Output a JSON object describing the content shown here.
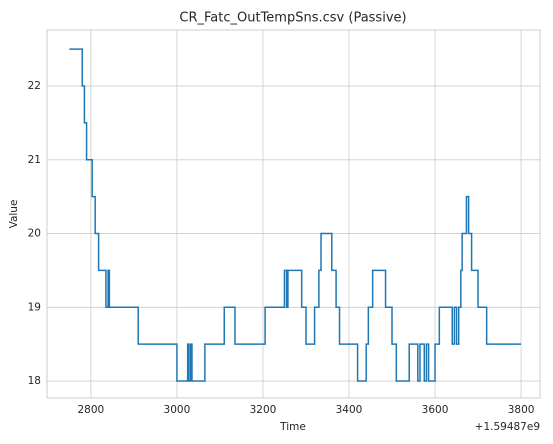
{
  "chart_data": {
    "type": "line",
    "title": "CR_Fatc_OutTempSns.csv (Passive)",
    "xlabel": "Time",
    "ylabel": "Value",
    "x_offset_label": "+1.59487e9",
    "x": [
      2750,
      2780,
      2780,
      2785,
      2785,
      2790,
      2790,
      2803,
      2803,
      2810,
      2810,
      2818,
      2818,
      2835,
      2835,
      2840,
      2840,
      2843,
      2843,
      2910,
      2910,
      3000,
      3000,
      3025,
      3025,
      3028,
      3028,
      3032,
      3032,
      3035,
      3035,
      3065,
      3065,
      3110,
      3110,
      3135,
      3135,
      3205,
      3205,
      3250,
      3250,
      3255,
      3255,
      3258,
      3258,
      3290,
      3290,
      3300,
      3300,
      3320,
      3320,
      3330,
      3330,
      3335,
      3335,
      3360,
      3360,
      3370,
      3370,
      3378,
      3378,
      3420,
      3420,
      3440,
      3440,
      3445,
      3445,
      3455,
      3455,
      3485,
      3485,
      3500,
      3500,
      3510,
      3510,
      3540,
      3540,
      3560,
      3560,
      3565,
      3565,
      3575,
      3575,
      3580,
      3580,
      3585,
      3585,
      3600,
      3600,
      3610,
      3610,
      3640,
      3640,
      3645,
      3645,
      3650,
      3650,
      3655,
      3655,
      3660,
      3660,
      3663,
      3663,
      3673,
      3673,
      3678,
      3678,
      3685,
      3685,
      3700,
      3700,
      3720,
      3720,
      3800
    ],
    "series": [
      {
        "name": "Value",
        "color": "#1f77b4",
        "values": [
          22.5,
          22.5,
          22,
          22,
          21.5,
          21.5,
          21,
          21,
          20.5,
          20.5,
          20,
          20,
          19.5,
          19.5,
          19,
          19,
          19.5,
          19.5,
          19,
          19,
          18.5,
          18.5,
          18,
          18,
          18.5,
          18.5,
          18,
          18,
          18.5,
          18.5,
          18,
          18,
          18.5,
          18.5,
          19,
          19,
          18.5,
          18.5,
          19,
          19,
          19.5,
          19.5,
          19,
          19,
          19.5,
          19.5,
          19,
          19,
          18.5,
          18.5,
          19,
          19,
          19.5,
          19.5,
          20,
          20,
          19.5,
          19.5,
          19,
          19,
          18.5,
          18.5,
          18,
          18,
          18.5,
          18.5,
          19,
          19,
          19.5,
          19.5,
          19,
          19,
          18.5,
          18.5,
          18,
          18,
          18.5,
          18.5,
          18,
          18,
          18.5,
          18.5,
          18,
          18,
          18.5,
          18.5,
          18,
          18,
          18.5,
          18.5,
          19,
          19,
          18.5,
          18.5,
          19,
          19,
          18.5,
          18.5,
          19,
          19,
          19.5,
          19.5,
          20,
          20,
          20.5,
          20.5,
          20,
          20,
          19.5,
          19.5,
          19,
          19,
          18.5,
          18.5
        ]
      }
    ],
    "xlim": [
      2698,
      3844
    ],
    "xticks": [
      2800,
      3000,
      3200,
      3400,
      3600,
      3800
    ],
    "ylim": [
      17.77,
      22.76
    ],
    "yticks": [
      18,
      19,
      20,
      21,
      22
    ],
    "grid": true
  }
}
